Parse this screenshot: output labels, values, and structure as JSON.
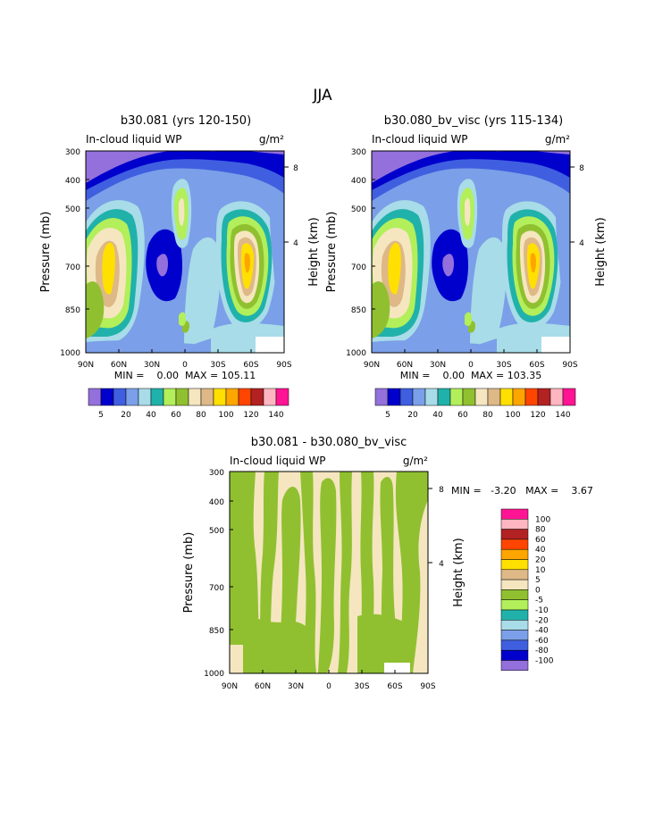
{
  "page_title": "JJA",
  "chart_data": [
    {
      "type": "heatmap",
      "title": "b30.081 (yrs 120-150)",
      "variable": "In-cloud liquid WP",
      "units": "g/m²",
      "ylabel": "Pressure (mb)",
      "ylabel_right": "Height (km)",
      "x_ticks": [
        "90N",
        "60N",
        "30N",
        "0",
        "30S",
        "60S",
        "90S"
      ],
      "y_ticks": [
        "300",
        "400",
        "500",
        "700",
        "850",
        "1000"
      ],
      "y_ticks_right": [
        "8",
        "4"
      ],
      "stats": "MIN =    0.00  MAX = 105.11",
      "colorbar_labels": [
        "5",
        "20",
        "40",
        "60",
        "80",
        "100",
        "120",
        "140"
      ],
      "colorbar_colors": [
        "#9370db",
        "#0000cd",
        "#3f5fe0",
        "#7b9fe8",
        "#a8dce8",
        "#20b2aa",
        "#b2ef5a",
        "#90c030",
        "#f5e6c0",
        "#deb887",
        "#ffe000",
        "#ffa500",
        "#ff4500",
        "#b22222",
        "#ffb6c1",
        "#ff1493"
      ]
    },
    {
      "type": "heatmap",
      "title": "b30.080_bv_visc (yrs 115-134)",
      "variable": "In-cloud liquid WP",
      "units": "g/m²",
      "ylabel": "Pressure (mb)",
      "ylabel_right": "Height (km)",
      "x_ticks": [
        "90N",
        "60N",
        "30N",
        "0",
        "30S",
        "60S",
        "90S"
      ],
      "y_ticks": [
        "300",
        "400",
        "500",
        "700",
        "850",
        "1000"
      ],
      "y_ticks_right": [
        "8",
        "4"
      ],
      "stats": "MIN =    0.00  MAX = 103.35",
      "colorbar_labels": [
        "5",
        "20",
        "40",
        "60",
        "80",
        "100",
        "120",
        "140"
      ],
      "colorbar_colors": [
        "#9370db",
        "#0000cd",
        "#3f5fe0",
        "#7b9fe8",
        "#a8dce8",
        "#20b2aa",
        "#b2ef5a",
        "#90c030",
        "#f5e6c0",
        "#deb887",
        "#ffe000",
        "#ffa500",
        "#ff4500",
        "#b22222",
        "#ffb6c1",
        "#ff1493"
      ]
    },
    {
      "type": "heatmap",
      "title": "b30.081 - b30.080_bv_visc",
      "variable": "In-cloud liquid WP",
      "units": "g/m²",
      "ylabel": "Pressure (mb)",
      "ylabel_right": "Height (km)",
      "x_ticks": [
        "90N",
        "60N",
        "30N",
        "0",
        "30S",
        "60S",
        "90S"
      ],
      "y_ticks": [
        "300",
        "400",
        "500",
        "700",
        "850",
        "1000"
      ],
      "y_ticks_right": [
        "8",
        "4"
      ],
      "stats": "MIN =   -3.20   MAX =    3.67",
      "colorbar_labels": [
        "100",
        "80",
        "60",
        "40",
        "20",
        "10",
        "5",
        "0",
        "-5",
        "-10",
        "-20",
        "-40",
        "-60",
        "-80",
        "-100"
      ],
      "colorbar_colors": [
        "#ff1493",
        "#ffb6c1",
        "#b22222",
        "#ff4500",
        "#ffa500",
        "#ffe000",
        "#deb887",
        "#f5e6c0",
        "#90c030",
        "#b2ef5a",
        "#20b2aa",
        "#a8dce8",
        "#7b9fe8",
        "#3f5fe0",
        "#0000cd",
        "#9370db"
      ]
    }
  ]
}
